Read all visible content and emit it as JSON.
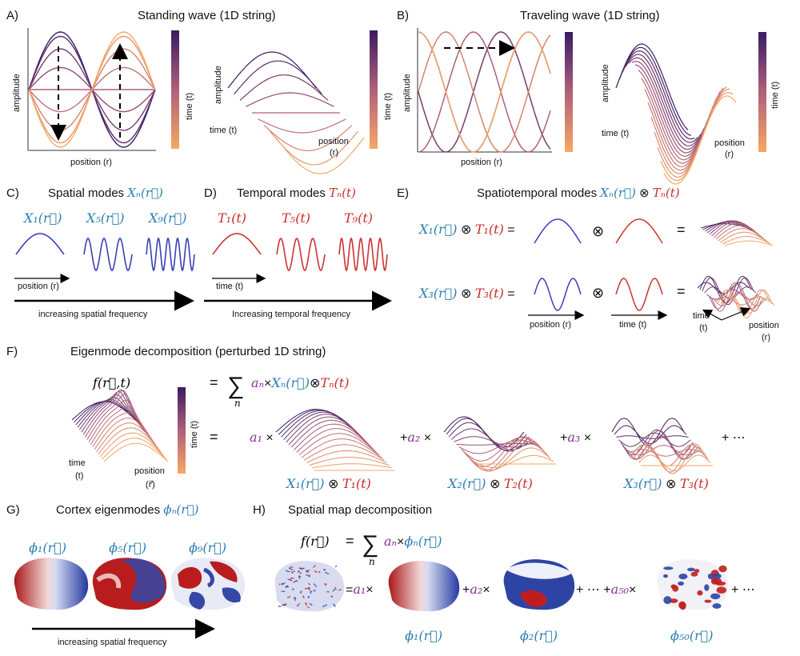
{
  "colors": {
    "blue": "#2a7fb0",
    "red": "#cc2a2a",
    "purple": "#8a2f9a",
    "dark": "#3a1b63",
    "light": "#f6a865"
  },
  "panelA": {
    "letter": "A)",
    "title": "Standing wave (1D string)",
    "ylabel": "amplitude",
    "xlabel": "position (r)",
    "colorbar": "time (t)",
    "ax3d_amp": "amplitude",
    "ax3d_time": "time (t)",
    "ax3d_pos": "position",
    "ax3d_pos2": "(r)"
  },
  "panelB": {
    "letter": "B)",
    "title": "Traveling wave  (1D string)",
    "ylabel": "amplitude",
    "xlabel": "position (r)",
    "colorbar": "time (t)",
    "ax3d_amp": "amplitude",
    "ax3d_time": "time (t)",
    "ax3d_pos": "position",
    "ax3d_pos2": "(r)"
  },
  "panelC": {
    "letter": "C)",
    "title": "Spatial modes ",
    "title_sym": "Xₙ(r⃗)",
    "modes": [
      "X₁(r⃗)",
      "X₅(r⃗)",
      "X₉(r⃗)"
    ],
    "xlabel": "position (r)",
    "arrow": "increasing spatial frequency"
  },
  "panelD": {
    "letter": "D)",
    "title": "Temporal modes ",
    "title_sym": "Tₙ(t)",
    "modes": [
      "T₁(t)",
      "T₅(t)",
      "T₉(t)"
    ],
    "xlabel": "time (t)",
    "arrow": "Increasing temporal frequency"
  },
  "panelE": {
    "letter": "E)",
    "title": "Spatiotemporal modes ",
    "title_x": "Xₙ(r⃗)",
    "title_op": " ⊗ ",
    "title_t": "Tₙ(t)",
    "row1": {
      "x": "X₁(r⃗)",
      "t": "T₁(t)"
    },
    "row2": {
      "x": "X₃(r⃗)",
      "t": "T₃(t)"
    },
    "otimes": "⊗",
    "eq": "=",
    "xlabel": "position (r)",
    "tlabel": "time (t)",
    "ax_time": "time",
    "ax_time2": "(t)",
    "ax_pos": "position",
    "ax_pos2": "(r)"
  },
  "panelF": {
    "letter": "F)",
    "title": "Eigenmode decomposition  (perturbed 1D string)",
    "lhs": "f(r⃗,t)",
    "eq": "=",
    "sum": "∑",
    "sum_idx": "n",
    "an": "aₙ",
    "times": "×",
    "xn": "Xₙ(r⃗)",
    "otimes": "⊗",
    "tn": "Tₙ(t)",
    "colorbar": "time (t)",
    "ax_time": "time",
    "ax_time2": "(t)",
    "ax_pos": "position",
    "ax_pos2": "(r⃗)",
    "terms": [
      {
        "coef": "a₁",
        "x": "X₁(r⃗)",
        "t": "T₁(t)",
        "prefix": ""
      },
      {
        "coef": "a₂",
        "x": "X₂(r⃗)",
        "t": "T₂(t)",
        "prefix": "+"
      },
      {
        "coef": "a₃",
        "x": "X₃(r⃗)",
        "t": "T₃(t)",
        "prefix": "+"
      }
    ],
    "ellipsis": "+ ⋯"
  },
  "panelG": {
    "letter": "G)",
    "title": "Cortex eigenmodes ",
    "title_sym": "ϕₙ(r⃗)",
    "modes": [
      "ϕ₁(r⃗)",
      "ϕ₅(r⃗)",
      "ϕ₉(r⃗)"
    ],
    "arrow": "increasing spatial frequency"
  },
  "panelH": {
    "letter": "H)",
    "title": "Spatial map decomposition",
    "lhs": "f(r⃗)",
    "eq": "=",
    "sum": "∑",
    "sum_idx": "n",
    "an": "aₙ",
    "times": "×",
    "phin": "ϕₙ(r⃗)",
    "terms": [
      {
        "prefix": "=",
        "coef": "a₁",
        "phi": "ϕ₁(r⃗)"
      },
      {
        "prefix": "+",
        "coef": "a₂",
        "phi": "ϕ₂(r⃗)"
      },
      {
        "prefix": "+ ⋯ +",
        "coef": "a₅₀",
        "phi": "ϕ₅₀(r⃗)"
      }
    ],
    "ellipsis": "+ ⋯"
  }
}
